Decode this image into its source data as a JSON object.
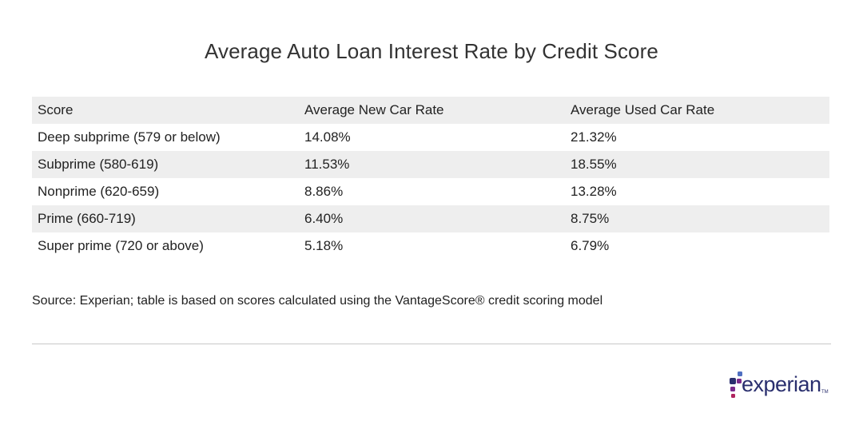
{
  "title": "Average Auto Loan Interest Rate by Credit Score",
  "chart_data": {
    "type": "table",
    "columns": [
      "Score",
      "Average New Car Rate",
      "Average Used Car Rate"
    ],
    "rows": [
      [
        "Deep subprime (579 or below)",
        "14.08%",
        "21.32%"
      ],
      [
        "Subprime (580-619)",
        "11.53%",
        "18.55%"
      ],
      [
        "Nonprime (620-659)",
        "8.86%",
        "13.28%"
      ],
      [
        "Prime (660-719)",
        "6.40%",
        "8.75%"
      ],
      [
        "Super prime (720 or above)",
        "5.18%",
        "6.79%"
      ]
    ]
  },
  "source": "Source: Experian; table is based on scores calculated using the VantageScore® credit scoring model",
  "logo": {
    "text": "experian",
    "tm": "TM",
    "colors": {
      "dark_blue": "#2a2f6e",
      "blue": "#4f6fc1",
      "purple": "#7b2a8c",
      "magenta": "#b0245f"
    }
  },
  "colors": {
    "shaded_row": "#eeeeee",
    "divider": "#c8c8c8",
    "text": "#222222"
  }
}
